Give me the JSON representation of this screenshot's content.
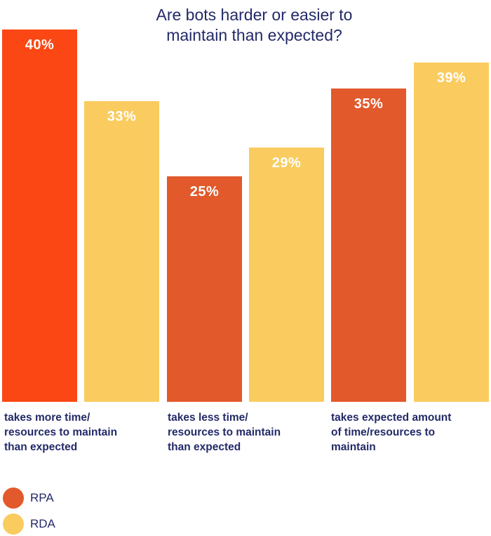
{
  "title": {
    "lines": [
      "Are bots harder or easier to",
      "maintain than expected?"
    ]
  },
  "colors": {
    "rpa": "#E2592C",
    "rpa_highlight": "#FB4713",
    "rda": "#FACC5F",
    "text_navy": "#232A68",
    "bar_label_text": "#FFFFFF",
    "background": "#FFFFFF"
  },
  "chart_data": {
    "type": "bar",
    "title": "Are bots harder or easier to maintain than expected?",
    "categories": [
      "takes more time/ resources to maintain than expected",
      "takes less time/ resources to maintain than expected",
      "takes expected amount of time/resources to maintain"
    ],
    "category_lines": [
      [
        "takes more time/",
        "resources to maintain",
        "than expected"
      ],
      [
        "takes less time/",
        "resources to maintain",
        "than expected"
      ],
      [
        "takes expected amount",
        "of time/resources to",
        "maintain"
      ]
    ],
    "series": [
      {
        "name": "RPA",
        "values": [
          40,
          25,
          35
        ]
      },
      {
        "name": "RDA",
        "values": [
          33,
          29,
          39
        ]
      }
    ],
    "value_suffix": "%",
    "bar_labels": [
      "40%",
      "25%",
      "35%",
      "33%",
      "29%",
      "39%"
    ],
    "ylim": [
      0,
      40
    ],
    "grid": false,
    "axis_labels_shown": false,
    "legend_position": "bottom-left",
    "note": "first RPA bar rendered in brighter highlight orange"
  },
  "legend": {
    "items": [
      {
        "label": "RPA",
        "color": "#E2592C"
      },
      {
        "label": "RDA",
        "color": "#FACC5F"
      }
    ]
  }
}
